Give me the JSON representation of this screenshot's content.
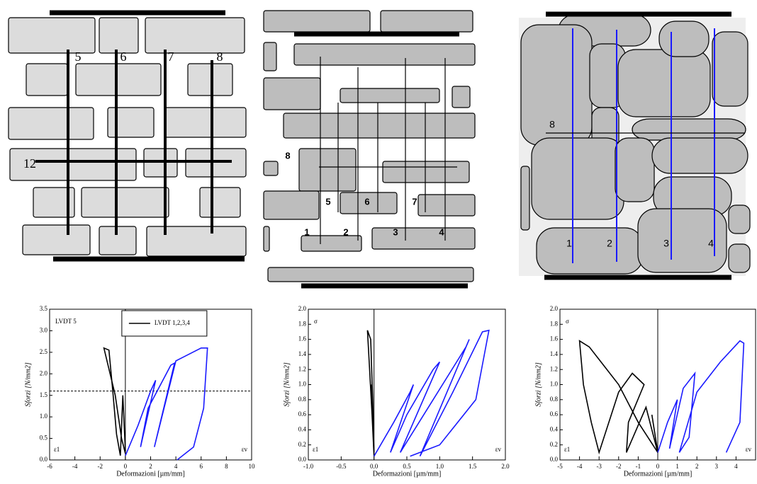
{
  "diagrams": [
    {
      "labels": [
        "5",
        "6",
        "7",
        "8",
        "12"
      ]
    },
    {
      "labels": [
        "8",
        "5",
        "6",
        "7",
        "1",
        "2",
        "3",
        "4"
      ]
    },
    {
      "labels": [
        "8",
        "1",
        "2",
        "3",
        "4"
      ]
    }
  ],
  "chart_data": [
    {
      "type": "line",
      "annotations": [
        "LVDT 5",
        "ε1",
        "εv"
      ],
      "ylabel": "Sforzi [N/mm2]",
      "xlabel": "Deformazioni [µm/mm]",
      "xlim": [
        -6,
        10
      ],
      "xticks": [
        -6,
        -4,
        -2,
        0,
        2,
        4,
        6,
        8,
        10
      ],
      "ylim": [
        0,
        3.5
      ],
      "yticks": [
        {
          "value": 0,
          "label": "0.0"
        },
        0.5,
        {
          "value": 1,
          "label": "1.0"
        },
        1.5,
        {
          "value": 2,
          "label": "2.0"
        },
        2.5,
        {
          "value": 3,
          "label": "3.0"
        },
        3.5
      ],
      "hline": 1.6,
      "series": [
        {
          "name": "LVDT 1,2,3,4",
          "color": "#000000",
          "x": [
            0,
            -0.3,
            -0.8,
            -1.7,
            -1.3,
            -1.0,
            -0.7,
            -0.4,
            -0.2,
            0
          ],
          "y": [
            0.15,
            0.5,
            1.5,
            2.6,
            2.55,
            1.6,
            0.6,
            0.1,
            1.5,
            0.2
          ]
        },
        {
          "color": "#1a1aff",
          "x": [
            0,
            1,
            2,
            2.4,
            1.2,
            1.8,
            3.6,
            3.9,
            2.3,
            4,
            6.0,
            6.5,
            6.2,
            5.4,
            4.1
          ],
          "y": [
            0.1,
            0.8,
            1.6,
            1.85,
            0.3,
            1.2,
            2.2,
            2.25,
            0.3,
            2.3,
            2.6,
            2.6,
            1.2,
            0.3,
            0.0
          ]
        }
      ]
    },
    {
      "type": "line",
      "annotations": [
        "σ",
        "ε1",
        "εv"
      ],
      "ylabel": "Sforzi [N/mm2]",
      "xlabel": "Deformazioni [µm/mm]",
      "xlim": [
        -1,
        2
      ],
      "xticks": [
        {
          "value": -1,
          "label": "-1.0"
        },
        -0.5,
        {
          "value": 0,
          "label": "0.0"
        },
        0.5,
        {
          "value": 1,
          "label": "1.0"
        },
        1.5,
        {
          "value": 2,
          "label": "2.0"
        }
      ],
      "ylim": [
        0,
        2
      ],
      "yticks": [
        {
          "value": 0,
          "label": "0.0"
        },
        0.2,
        0.4,
        0.6,
        0.8,
        {
          "value": 1,
          "label": "1.0"
        },
        1.2,
        1.4,
        1.6,
        1.8,
        {
          "value": 2,
          "label": "2.0"
        }
      ],
      "series": [
        {
          "color": "#000000",
          "x": [
            0,
            -0.03,
            -0.08,
            -0.1,
            -0.05,
            -0.02,
            0,
            -0.04,
            0
          ],
          "y": [
            0.05,
            0.6,
            1.4,
            1.72,
            1.6,
            0.8,
            0.1,
            1.0,
            0.1
          ]
        },
        {
          "color": "#1a1aff",
          "x": [
            0,
            0.3,
            0.55,
            0.6,
            0.25,
            0.5,
            0.9,
            1.0,
            0.4,
            0.9,
            1.4,
            1.45,
            0.7,
            1.2,
            1.65,
            1.75,
            1.55,
            1.0,
            0.55
          ],
          "y": [
            0.05,
            0.5,
            0.9,
            1.0,
            0.1,
            0.6,
            1.2,
            1.3,
            0.1,
            0.8,
            1.5,
            1.6,
            0.05,
            0.9,
            1.7,
            1.72,
            0.8,
            0.2,
            0.05
          ]
        }
      ]
    },
    {
      "type": "line",
      "annotations": [
        "σ",
        "ε1",
        "εv"
      ],
      "ylabel": "Sforzi [N/mm2]",
      "xlabel": "Deformazioni [µm/mm]",
      "xlim": [
        -5,
        5
      ],
      "xticks": [
        -5,
        -4,
        -3,
        -2,
        -1,
        0,
        1,
        2,
        3,
        4
      ],
      "ylim": [
        0,
        2
      ],
      "yticks": [
        {
          "value": 0,
          "label": "0.0"
        },
        0.2,
        0.4,
        0.6,
        0.8,
        {
          "value": 1,
          "label": "1.0"
        },
        1.2,
        1.4,
        1.6,
        1.8,
        {
          "value": 2,
          "label": "2.0"
        }
      ],
      "series": [
        {
          "color": "#000000",
          "x": [
            0,
            -1,
            -2,
            -3.5,
            -4,
            -3.8,
            -3.4,
            -3,
            -2,
            -1.3,
            -0.7,
            -1.5,
            -1.6,
            -0.6,
            0,
            -0.3,
            0
          ],
          "y": [
            0.1,
            0.5,
            1.0,
            1.5,
            1.58,
            1.0,
            0.5,
            0.1,
            0.9,
            1.15,
            1.0,
            0.5,
            0.1,
            0.7,
            0.1,
            0.6,
            0.1
          ]
        },
        {
          "color": "#1a1aff",
          "x": [
            0,
            0.5,
            1,
            0.6,
            1.3,
            1.9,
            1.6,
            1.1,
            2,
            3.2,
            4.2,
            4.4,
            4.2,
            3.5
          ],
          "y": [
            0.1,
            0.5,
            0.8,
            0.15,
            0.95,
            1.15,
            0.3,
            0.1,
            0.9,
            1.3,
            1.58,
            1.55,
            0.5,
            0.1
          ]
        }
      ]
    }
  ]
}
